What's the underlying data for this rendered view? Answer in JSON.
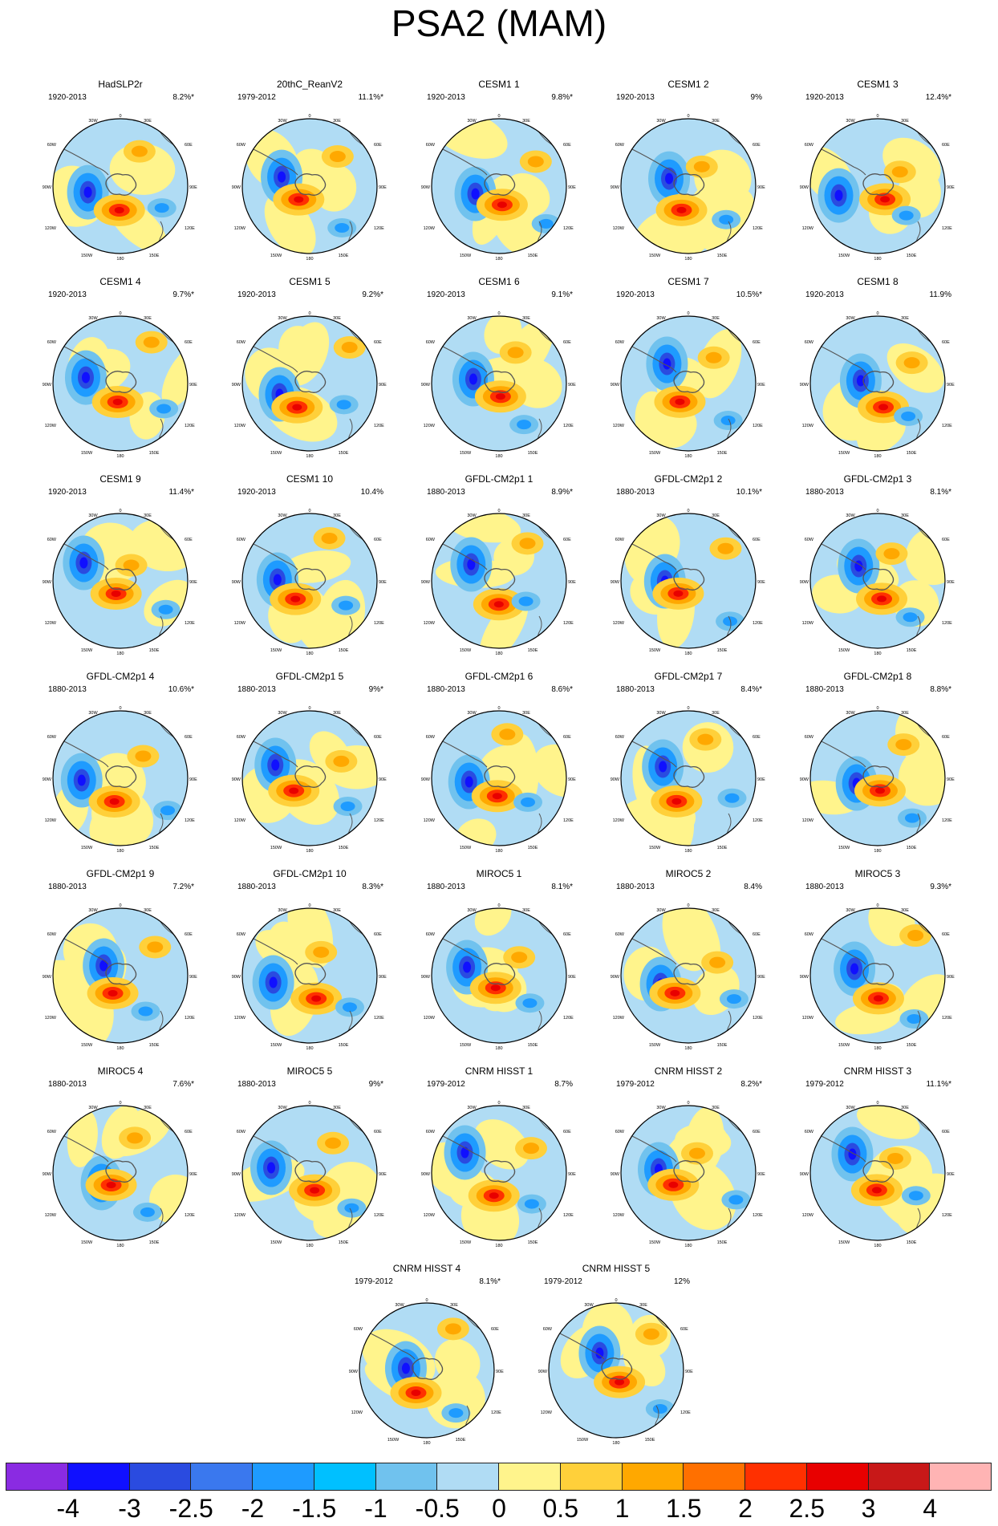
{
  "title": "PSA2 (MAM)",
  "panels": [
    {
      "name": "HadSLP2r",
      "period": "1920-2013",
      "variance": "8.2%*"
    },
    {
      "name": "20thC_ReanV2",
      "period": "1979-2012",
      "variance": "11.1%*"
    },
    {
      "name": "CESM1 1",
      "period": "1920-2013",
      "variance": "9.8%*"
    },
    {
      "name": "CESM1 2",
      "period": "1920-2013",
      "variance": "9%"
    },
    {
      "name": "CESM1 3",
      "period": "1920-2013",
      "variance": "12.4%*"
    },
    {
      "name": "CESM1 4",
      "period": "1920-2013",
      "variance": "9.7%*"
    },
    {
      "name": "CESM1 5",
      "period": "1920-2013",
      "variance": "9.2%*"
    },
    {
      "name": "CESM1 6",
      "period": "1920-2013",
      "variance": "9.1%*"
    },
    {
      "name": "CESM1 7",
      "period": "1920-2013",
      "variance": "10.5%*"
    },
    {
      "name": "CESM1 8",
      "period": "1920-2013",
      "variance": "11.9%"
    },
    {
      "name": "CESM1 9",
      "period": "1920-2013",
      "variance": "11.4%*"
    },
    {
      "name": "CESM1 10",
      "period": "1920-2013",
      "variance": "10.4%"
    },
    {
      "name": "GFDL-CM2p1 1",
      "period": "1880-2013",
      "variance": "8.9%*"
    },
    {
      "name": "GFDL-CM2p1 2",
      "period": "1880-2013",
      "variance": "10.1%*"
    },
    {
      "name": "GFDL-CM2p1 3",
      "period": "1880-2013",
      "variance": "8.1%*"
    },
    {
      "name": "GFDL-CM2p1 4",
      "period": "1880-2013",
      "variance": "10.6%*"
    },
    {
      "name": "GFDL-CM2p1 5",
      "period": "1880-2013",
      "variance": "9%*"
    },
    {
      "name": "GFDL-CM2p1 6",
      "period": "1880-2013",
      "variance": "8.6%*"
    },
    {
      "name": "GFDL-CM2p1 7",
      "period": "1880-2013",
      "variance": "8.4%*"
    },
    {
      "name": "GFDL-CM2p1 8",
      "period": "1880-2013",
      "variance": "8.8%*"
    },
    {
      "name": "GFDL-CM2p1 9",
      "period": "1880-2013",
      "variance": "7.2%*"
    },
    {
      "name": "GFDL-CM2p1 10",
      "period": "1880-2013",
      "variance": "8.3%*"
    },
    {
      "name": "MIROC5 1",
      "period": "1880-2013",
      "variance": "8.1%*"
    },
    {
      "name": "MIROC5 2",
      "period": "1880-2013",
      "variance": "8.4%"
    },
    {
      "name": "MIROC5 3",
      "period": "1880-2013",
      "variance": "9.3%*"
    },
    {
      "name": "MIROC5 4",
      "period": "1880-2013",
      "variance": "7.6%*"
    },
    {
      "name": "MIROC5 5",
      "period": "1880-2013",
      "variance": "9%*"
    },
    {
      "name": "CNRM HISST 1",
      "period": "1979-2012",
      "variance": "8.7%"
    },
    {
      "name": "CNRM HISST 2",
      "period": "1979-2012",
      "variance": "8.2%*"
    },
    {
      "name": "CNRM HISST 3",
      "period": "1979-2012",
      "variance": "11.1%*"
    },
    {
      "name": "CNRM HISST 4",
      "period": "1979-2012",
      "variance": "8.1%*"
    },
    {
      "name": "CNRM HISST 5",
      "period": "1979-2012",
      "variance": "12%"
    }
  ],
  "map_labels": {
    "top": "0",
    "top_left": "30W",
    "top_right": "30E",
    "upper_left": "60W",
    "upper_right": "60E",
    "left": "90W",
    "right": "90E",
    "lower_left": "120W",
    "lower_right": "120E",
    "bottom_left": "150W",
    "bottom_right": "150E",
    "bottom": "180"
  },
  "colorbar": {
    "colors": [
      "#8a2be2",
      "#1010ff",
      "#2a4be0",
      "#3a78ee",
      "#1e9bff",
      "#00c0ff",
      "#70c2ee",
      "#b0dcf4",
      "#fff48c",
      "#ffd03a",
      "#ffa800",
      "#ff7000",
      "#ff3000",
      "#e80000",
      "#c81818",
      "#ffb4b4"
    ],
    "ticks": [
      "-4",
      "-3",
      "-2.5",
      "-2",
      "-1.5",
      "-1",
      "-0.5",
      "0",
      "0.5",
      "1",
      "1.5",
      "2",
      "2.5",
      "3",
      "4"
    ]
  }
}
